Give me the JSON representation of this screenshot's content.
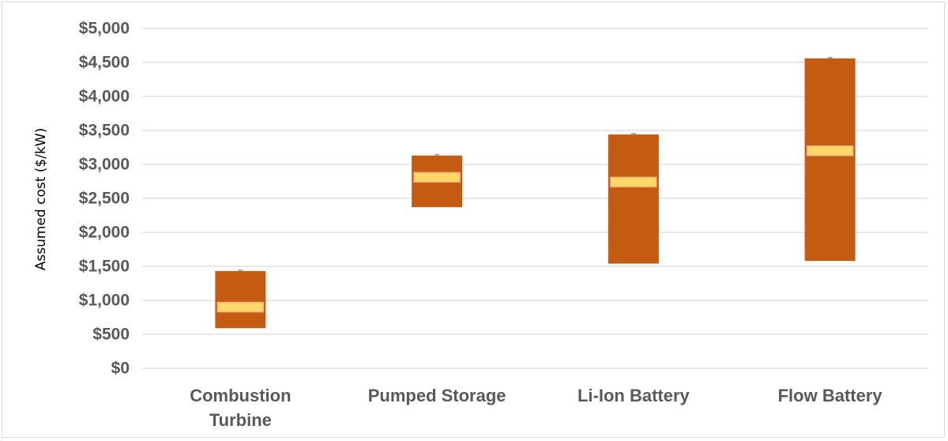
{
  "chart_data": {
    "type": "bar",
    "subtype": "floating-range-with-median",
    "title": "",
    "xlabel": "",
    "ylabel": "Assumed cost ($/kW)",
    "ylim": [
      0,
      5000
    ],
    "yticks": [
      0,
      500,
      1000,
      1500,
      2000,
      2500,
      3000,
      3500,
      4000,
      4500,
      5000
    ],
    "ytick_labels": [
      "$0",
      "$500",
      "$1,000",
      "$1,500",
      "$2,000",
      "$2,500",
      "$3,000",
      "$3,500",
      "$4,000",
      "$4,500",
      "$5,000"
    ],
    "grid": true,
    "legend": "none",
    "categories": [
      {
        "label_lines": [
          "Combustion",
          "Turbine"
        ],
        "low": 590,
        "high": 1430,
        "median": 900
      },
      {
        "label_lines": [
          "Pumped Storage"
        ],
        "low": 2370,
        "high": 3130,
        "median": 2810
      },
      {
        "label_lines": [
          "Li-Ion Battery"
        ],
        "low": 1540,
        "high": 3440,
        "median": 2740
      },
      {
        "label_lines": [
          "Flow Battery"
        ],
        "low": 1580,
        "high": 4560,
        "median": 3200
      }
    ],
    "colors": {
      "range_bar": "#c55a11",
      "median_marker": "#ffd966",
      "median_marker_border": "#f4b183",
      "gridline": "#d9d9d9",
      "text": "#595959",
      "cap": "#a6a6a6"
    }
  }
}
